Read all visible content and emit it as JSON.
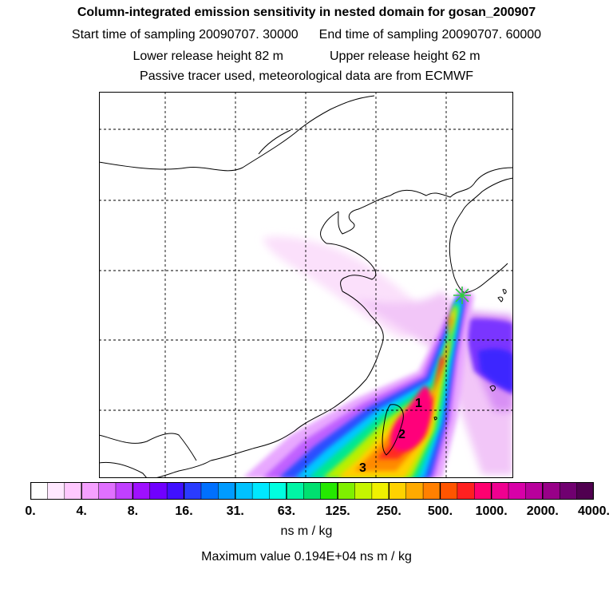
{
  "header": {
    "title": "Column-integrated emission sensitivity in nested domain for gosan_200907",
    "start_sampling": "Start time of sampling 20090707. 30000",
    "end_sampling": "End time of sampling 20090707. 60000",
    "lower_release": "Lower release height   82 m",
    "upper_release": "Upper release height   62 m",
    "tracer_note": "Passive tracer used, meteorological data are from ECMWF"
  },
  "map": {
    "markers": [
      {
        "label": "1"
      },
      {
        "label": "2"
      },
      {
        "label": "3"
      }
    ],
    "release_site_marker": "asterisk-icon",
    "colors": {
      "land_outline": "#000000",
      "grid": "#000000",
      "release_marker": "#2ecc40"
    }
  },
  "colorbar": {
    "labels": [
      "0.",
      "4.",
      "8.",
      "16.",
      "31.",
      "63.",
      "125.",
      "250.",
      "500.",
      "1000.",
      "2000.",
      "4000."
    ],
    "colors": [
      "#ffffff",
      "#ffe8ff",
      "#ffc8ff",
      "#f5a0ff",
      "#e070ff",
      "#c040ff",
      "#9f10ff",
      "#7000ff",
      "#4010ff",
      "#2a3cff",
      "#0070ff",
      "#009bff",
      "#00c2ff",
      "#00e8ff",
      "#00ffe0",
      "#00f5a5",
      "#00e070",
      "#25e800",
      "#7ff000",
      "#c5f500",
      "#f0f000",
      "#ffd200",
      "#ffaa00",
      "#ff8000",
      "#ff5500",
      "#ff2020",
      "#ff0070",
      "#f00090",
      "#d800a8",
      "#b8009c",
      "#980088",
      "#700070",
      "#500050"
    ],
    "units": "ns m / kg",
    "max_value": "Maximum value  0.194E+04 ns m / kg"
  }
}
